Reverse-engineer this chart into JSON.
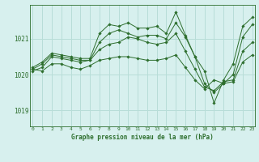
{
  "background_color": "#d7f0ee",
  "grid_color": "#b8ddd8",
  "line_color": "#2d6e2d",
  "xlabel": "Graphe pression niveau de la mer (hPa)",
  "xticks": [
    0,
    1,
    2,
    3,
    4,
    5,
    6,
    7,
    8,
    9,
    10,
    11,
    12,
    13,
    14,
    15,
    16,
    17,
    18,
    19,
    20,
    21,
    22,
    23
  ],
  "yticks": [
    1019,
    1020,
    1021
  ],
  "ylim": [
    1018.55,
    1021.95
  ],
  "xlim": [
    -0.3,
    23.3
  ],
  "series": [
    [
      1020.2,
      1020.35,
      1020.6,
      1020.55,
      1020.5,
      1020.45,
      1020.45,
      1021.15,
      1021.4,
      1021.35,
      1021.45,
      1021.3,
      1021.3,
      1021.35,
      1021.15,
      1021.75,
      1021.1,
      1020.5,
      1020.1,
      1019.2,
      1019.85,
      1020.3,
      1021.35,
      1021.6
    ],
    [
      1020.15,
      1020.3,
      1020.55,
      1020.5,
      1020.45,
      1020.4,
      1020.4,
      1020.9,
      1021.15,
      1021.25,
      1021.15,
      1021.05,
      1021.1,
      1021.1,
      1021.0,
      1021.45,
      1021.05,
      1020.5,
      1019.75,
      1019.5,
      1019.75,
      1020.0,
      1021.05,
      1021.4
    ],
    [
      1020.1,
      1020.2,
      1020.5,
      1020.45,
      1020.4,
      1020.35,
      1020.4,
      1020.7,
      1020.85,
      1020.9,
      1021.05,
      1021.0,
      1020.9,
      1020.85,
      1020.9,
      1021.15,
      1020.65,
      1020.15,
      1019.65,
      1019.55,
      1019.8,
      1019.85,
      1020.65,
      1020.9
    ],
    [
      1020.15,
      1020.1,
      1020.3,
      1020.3,
      1020.2,
      1020.15,
      1020.25,
      1020.4,
      1020.45,
      1020.5,
      1020.5,
      1020.45,
      1020.4,
      1020.4,
      1020.45,
      1020.55,
      1020.2,
      1019.85,
      1019.6,
      1019.85,
      1019.75,
      1019.8,
      1020.35,
      1020.55
    ]
  ]
}
